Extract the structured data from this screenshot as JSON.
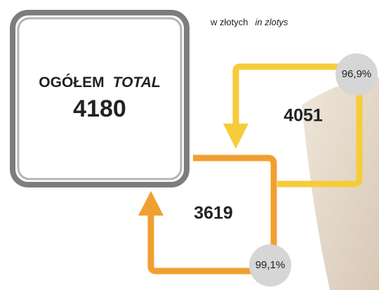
{
  "unit": {
    "pl": "w złotych",
    "en": "in zlotys"
  },
  "total": {
    "label_pl": "OGÓŁEM",
    "label_en": "TOTAL",
    "value": "4180"
  },
  "flows": [
    {
      "value": "4051",
      "share": "96,9%"
    },
    {
      "value": "3619",
      "share": "99,1%"
    }
  ]
}
